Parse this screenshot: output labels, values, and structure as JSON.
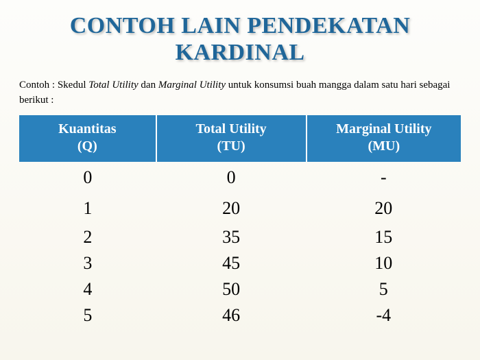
{
  "title_line1": "CONTOH LAIN PENDEKATAN",
  "title_line2": "KARDINAL",
  "description_prefix": "Contoh : Skedul ",
  "description_italic1": "Total Utility",
  "description_mid": " dan ",
  "description_italic2": "Marginal Utility",
  "description_suffix": " untuk konsumsi buah mangga dalam satu hari  sebagai berikut :",
  "table": {
    "columns": [
      {
        "line1": "Kuantitas",
        "line2": "(Q)"
      },
      {
        "line1": "Total Utility",
        "line2": "(TU)"
      },
      {
        "line1": "Marginal Utility",
        "line2": "(MU)"
      }
    ],
    "rows": [
      [
        "0",
        "0",
        "-"
      ],
      [
        "1",
        "20",
        "20"
      ],
      [
        "2",
        "35",
        "15"
      ],
      [
        "3",
        "45",
        "10"
      ],
      [
        "4",
        "50",
        "5"
      ],
      [
        "5",
        "46",
        "-4"
      ]
    ],
    "header_bg": "#2a81bc",
    "header_fg": "#ffffff",
    "cell_fg": "#000000",
    "title_color": "#1f6699"
  }
}
